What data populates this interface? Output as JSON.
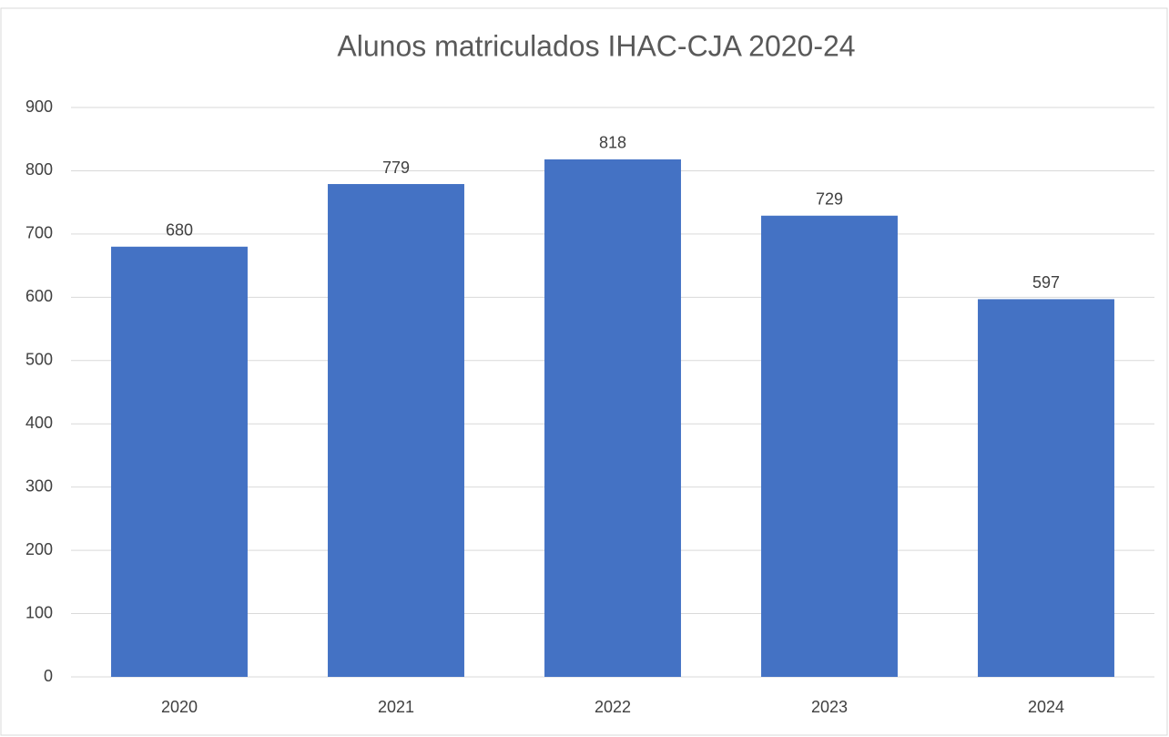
{
  "chart_data": {
    "type": "bar",
    "title": "Alunos matriculados IHAC-CJA 2020-24",
    "categories": [
      "2020",
      "2021",
      "2022",
      "2023",
      "2024"
    ],
    "values": [
      680,
      779,
      818,
      729,
      597
    ],
    "color": "#4472c4",
    "ylim": [
      0,
      900
    ],
    "yticks": [
      0,
      100,
      200,
      300,
      400,
      500,
      600,
      700,
      800,
      900
    ],
    "grid": true
  }
}
